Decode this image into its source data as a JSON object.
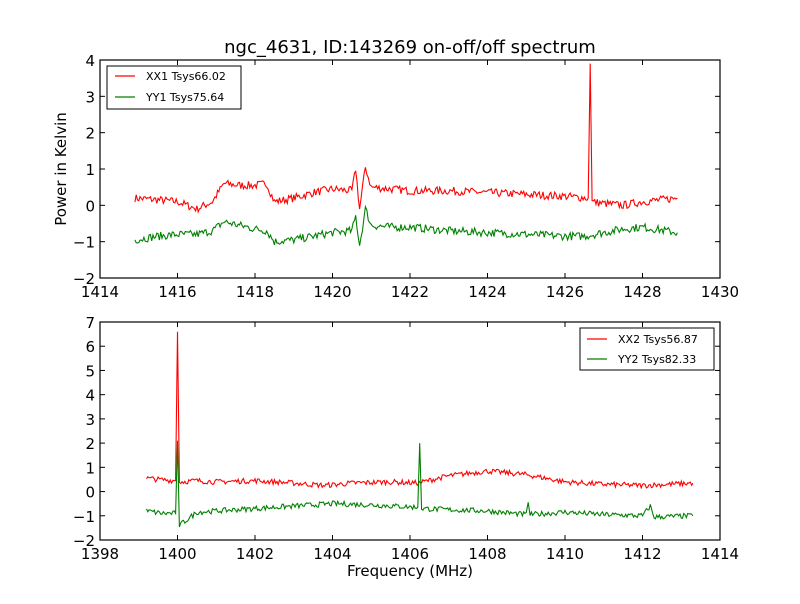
{
  "chart_data": [
    {
      "type": "line",
      "title": "ngc_4631, ID:143269 on-off/off spectrum",
      "xlabel": "",
      "ylabel": "Power in Kelvin",
      "xlim": [
        1414,
        1430
      ],
      "ylim": [
        -2,
        4
      ],
      "xticks": [
        "1414",
        "1416",
        "1418",
        "1420",
        "1422",
        "1424",
        "1426",
        "1428",
        "1430"
      ],
      "yticks": [
        "−2",
        "−1",
        "0",
        "1",
        "2",
        "3",
        "4"
      ],
      "legend_position": "top-left",
      "series": [
        {
          "name": "XX1 Tsys66.02",
          "color": "#ff0000",
          "x": [
            1414.9,
            1415.5,
            1416.0,
            1416.5,
            1416.9,
            1417.2,
            1417.6,
            1418.0,
            1418.3,
            1418.5,
            1419.0,
            1419.5,
            1420.0,
            1420.5,
            1420.6,
            1420.7,
            1420.85,
            1421.0,
            1421.5,
            1422.0,
            1423.0,
            1424.0,
            1425.0,
            1426.0,
            1426.6,
            1426.65,
            1426.7,
            1427.0,
            1427.5,
            1428.0,
            1428.9
          ],
          "y": [
            0.2,
            0.15,
            0.1,
            -0.1,
            0.1,
            0.6,
            0.55,
            0.55,
            0.6,
            0.1,
            0.2,
            0.35,
            0.45,
            0.4,
            1.0,
            -0.1,
            1.05,
            0.5,
            0.45,
            0.4,
            0.4,
            0.35,
            0.3,
            0.25,
            0.2,
            3.9,
            0.1,
            0.05,
            0.0,
            0.1,
            0.2
          ]
        },
        {
          "name": "YY1 Tsys75.64",
          "color": "#008000",
          "x": [
            1414.9,
            1415.5,
            1416.0,
            1416.5,
            1416.9,
            1417.2,
            1417.6,
            1418.0,
            1418.3,
            1418.5,
            1419.0,
            1419.5,
            1420.0,
            1420.5,
            1420.6,
            1420.7,
            1420.85,
            1421.0,
            1421.5,
            1422.0,
            1423.0,
            1424.0,
            1425.0,
            1426.0,
            1426.5,
            1427.0,
            1427.5,
            1428.0,
            1428.9
          ],
          "y": [
            -0.95,
            -0.85,
            -0.8,
            -0.8,
            -0.7,
            -0.45,
            -0.55,
            -0.65,
            -0.7,
            -1.0,
            -0.95,
            -0.85,
            -0.75,
            -0.7,
            -0.3,
            -1.1,
            -0.1,
            -0.55,
            -0.6,
            -0.6,
            -0.7,
            -0.75,
            -0.8,
            -0.85,
            -0.85,
            -0.75,
            -0.65,
            -0.6,
            -0.75
          ]
        }
      ]
    },
    {
      "type": "line",
      "title": "",
      "xlabel": "Frequency (MHz)",
      "ylabel": "",
      "xlim": [
        1398,
        1414
      ],
      "ylim": [
        -2,
        7
      ],
      "xticks": [
        "1398",
        "1400",
        "1402",
        "1404",
        "1406",
        "1408",
        "1410",
        "1412",
        "1414"
      ],
      "yticks": [
        "−2",
        "−1",
        "0",
        "1",
        "2",
        "3",
        "4",
        "5",
        "6",
        "7"
      ],
      "legend_position": "top-right",
      "series": [
        {
          "name": "XX2 Tsys56.87",
          "color": "#ff0000",
          "x": [
            1399.2,
            1399.5,
            1399.95,
            1400.0,
            1400.05,
            1400.5,
            1401.0,
            1402.0,
            1403.0,
            1403.8,
            1404.5,
            1405.5,
            1406.2,
            1407.0,
            1408.0,
            1409.0,
            1410.0,
            1411.0,
            1412.0,
            1413.3
          ],
          "y": [
            0.55,
            0.5,
            0.45,
            6.6,
            0.4,
            0.45,
            0.4,
            0.45,
            0.35,
            0.25,
            0.35,
            0.4,
            0.35,
            0.65,
            0.85,
            0.7,
            0.4,
            0.3,
            0.25,
            0.35
          ]
        },
        {
          "name": "YY2 Tsys82.33",
          "color": "#008000",
          "x": [
            1399.2,
            1399.6,
            1399.95,
            1400.0,
            1400.05,
            1400.5,
            1401.0,
            1402.0,
            1403.0,
            1404.0,
            1405.0,
            1406.2,
            1406.25,
            1406.3,
            1407.0,
            1408.0,
            1409.0,
            1409.05,
            1409.1,
            1410.0,
            1411.0,
            1412.0,
            1412.2,
            1412.3,
            1413.3
          ],
          "y": [
            -0.8,
            -0.9,
            -0.9,
            2.1,
            -1.4,
            -0.85,
            -0.8,
            -0.7,
            -0.6,
            -0.5,
            -0.55,
            -0.65,
            2.0,
            -0.7,
            -0.75,
            -0.8,
            -0.95,
            -0.4,
            -0.95,
            -0.85,
            -0.95,
            -1.0,
            -0.6,
            -1.05,
            -1.0
          ]
        }
      ]
    }
  ]
}
